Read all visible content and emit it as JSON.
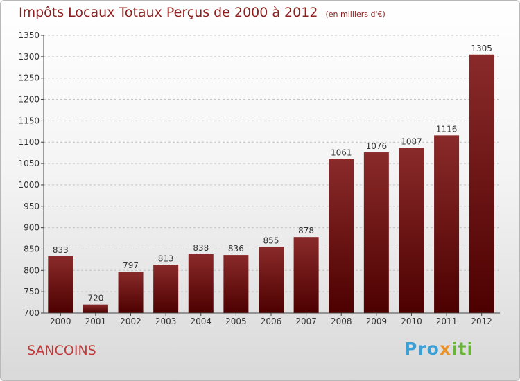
{
  "chart_data": {
    "type": "bar",
    "title": "Impôts Locaux Totaux Perçus de 2000 à 2012",
    "unit_note": "(en milliers d'€)",
    "categories": [
      "2000",
      "2001",
      "2002",
      "2003",
      "2004",
      "2005",
      "2006",
      "2007",
      "2008",
      "2009",
      "2010",
      "2011",
      "2012"
    ],
    "values": [
      833,
      720,
      797,
      813,
      838,
      836,
      855,
      878,
      1061,
      1076,
      1087,
      1116,
      1305
    ],
    "ylim": [
      700,
      1350
    ],
    "yticks": [
      700,
      750,
      800,
      850,
      900,
      950,
      1000,
      1050,
      1100,
      1150,
      1200,
      1250,
      1300,
      1350
    ],
    "grid": true,
    "bar_color_top": "#8a2a2a",
    "bar_color_bottom": "#4d0000"
  },
  "commune": "SANCOINS",
  "logo": {
    "part1": "Pro",
    "part2": "x",
    "part3": "iti"
  }
}
